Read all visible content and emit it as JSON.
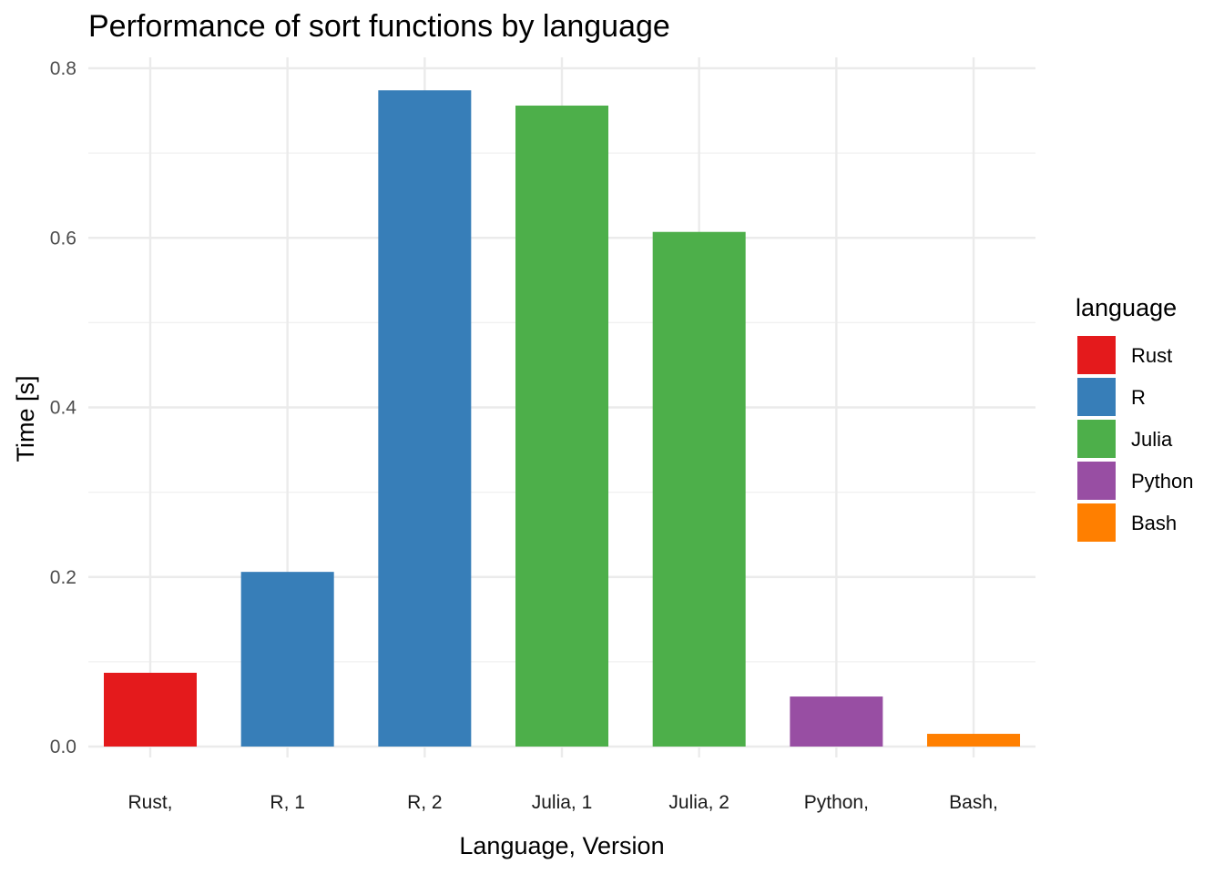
{
  "chart_data": {
    "type": "bar",
    "title": "Performance of sort functions by language",
    "xlabel": "Language, Version",
    "ylabel": "Time [s]",
    "ylim": [
      0,
      0.8
    ],
    "yticks": [
      0.0,
      0.2,
      0.4,
      0.6,
      0.8
    ],
    "ytick_labels": [
      "0.0",
      "0.2",
      "0.4",
      "0.6",
      "0.8"
    ],
    "grid": true,
    "categories": [
      "Rust,",
      "R, 1",
      "R, 2",
      "Julia, 1",
      "Julia, 2",
      "Python,",
      "Bash,"
    ],
    "values": [
      0.087,
      0.206,
      0.774,
      0.756,
      0.607,
      0.059,
      0.015
    ],
    "bar_language": [
      "Rust",
      "R",
      "R",
      "Julia",
      "Julia",
      "Python",
      "Bash"
    ],
    "legend": {
      "title": "language",
      "placement": "right",
      "entries": [
        {
          "label": "Rust",
          "color": "#E41A1C"
        },
        {
          "label": "R",
          "color": "#377EB8"
        },
        {
          "label": "Julia",
          "color": "#4DAF4A"
        },
        {
          "label": "Python",
          "color": "#984EA3"
        },
        {
          "label": "Bash",
          "color": "#FF7F00"
        }
      ]
    }
  }
}
